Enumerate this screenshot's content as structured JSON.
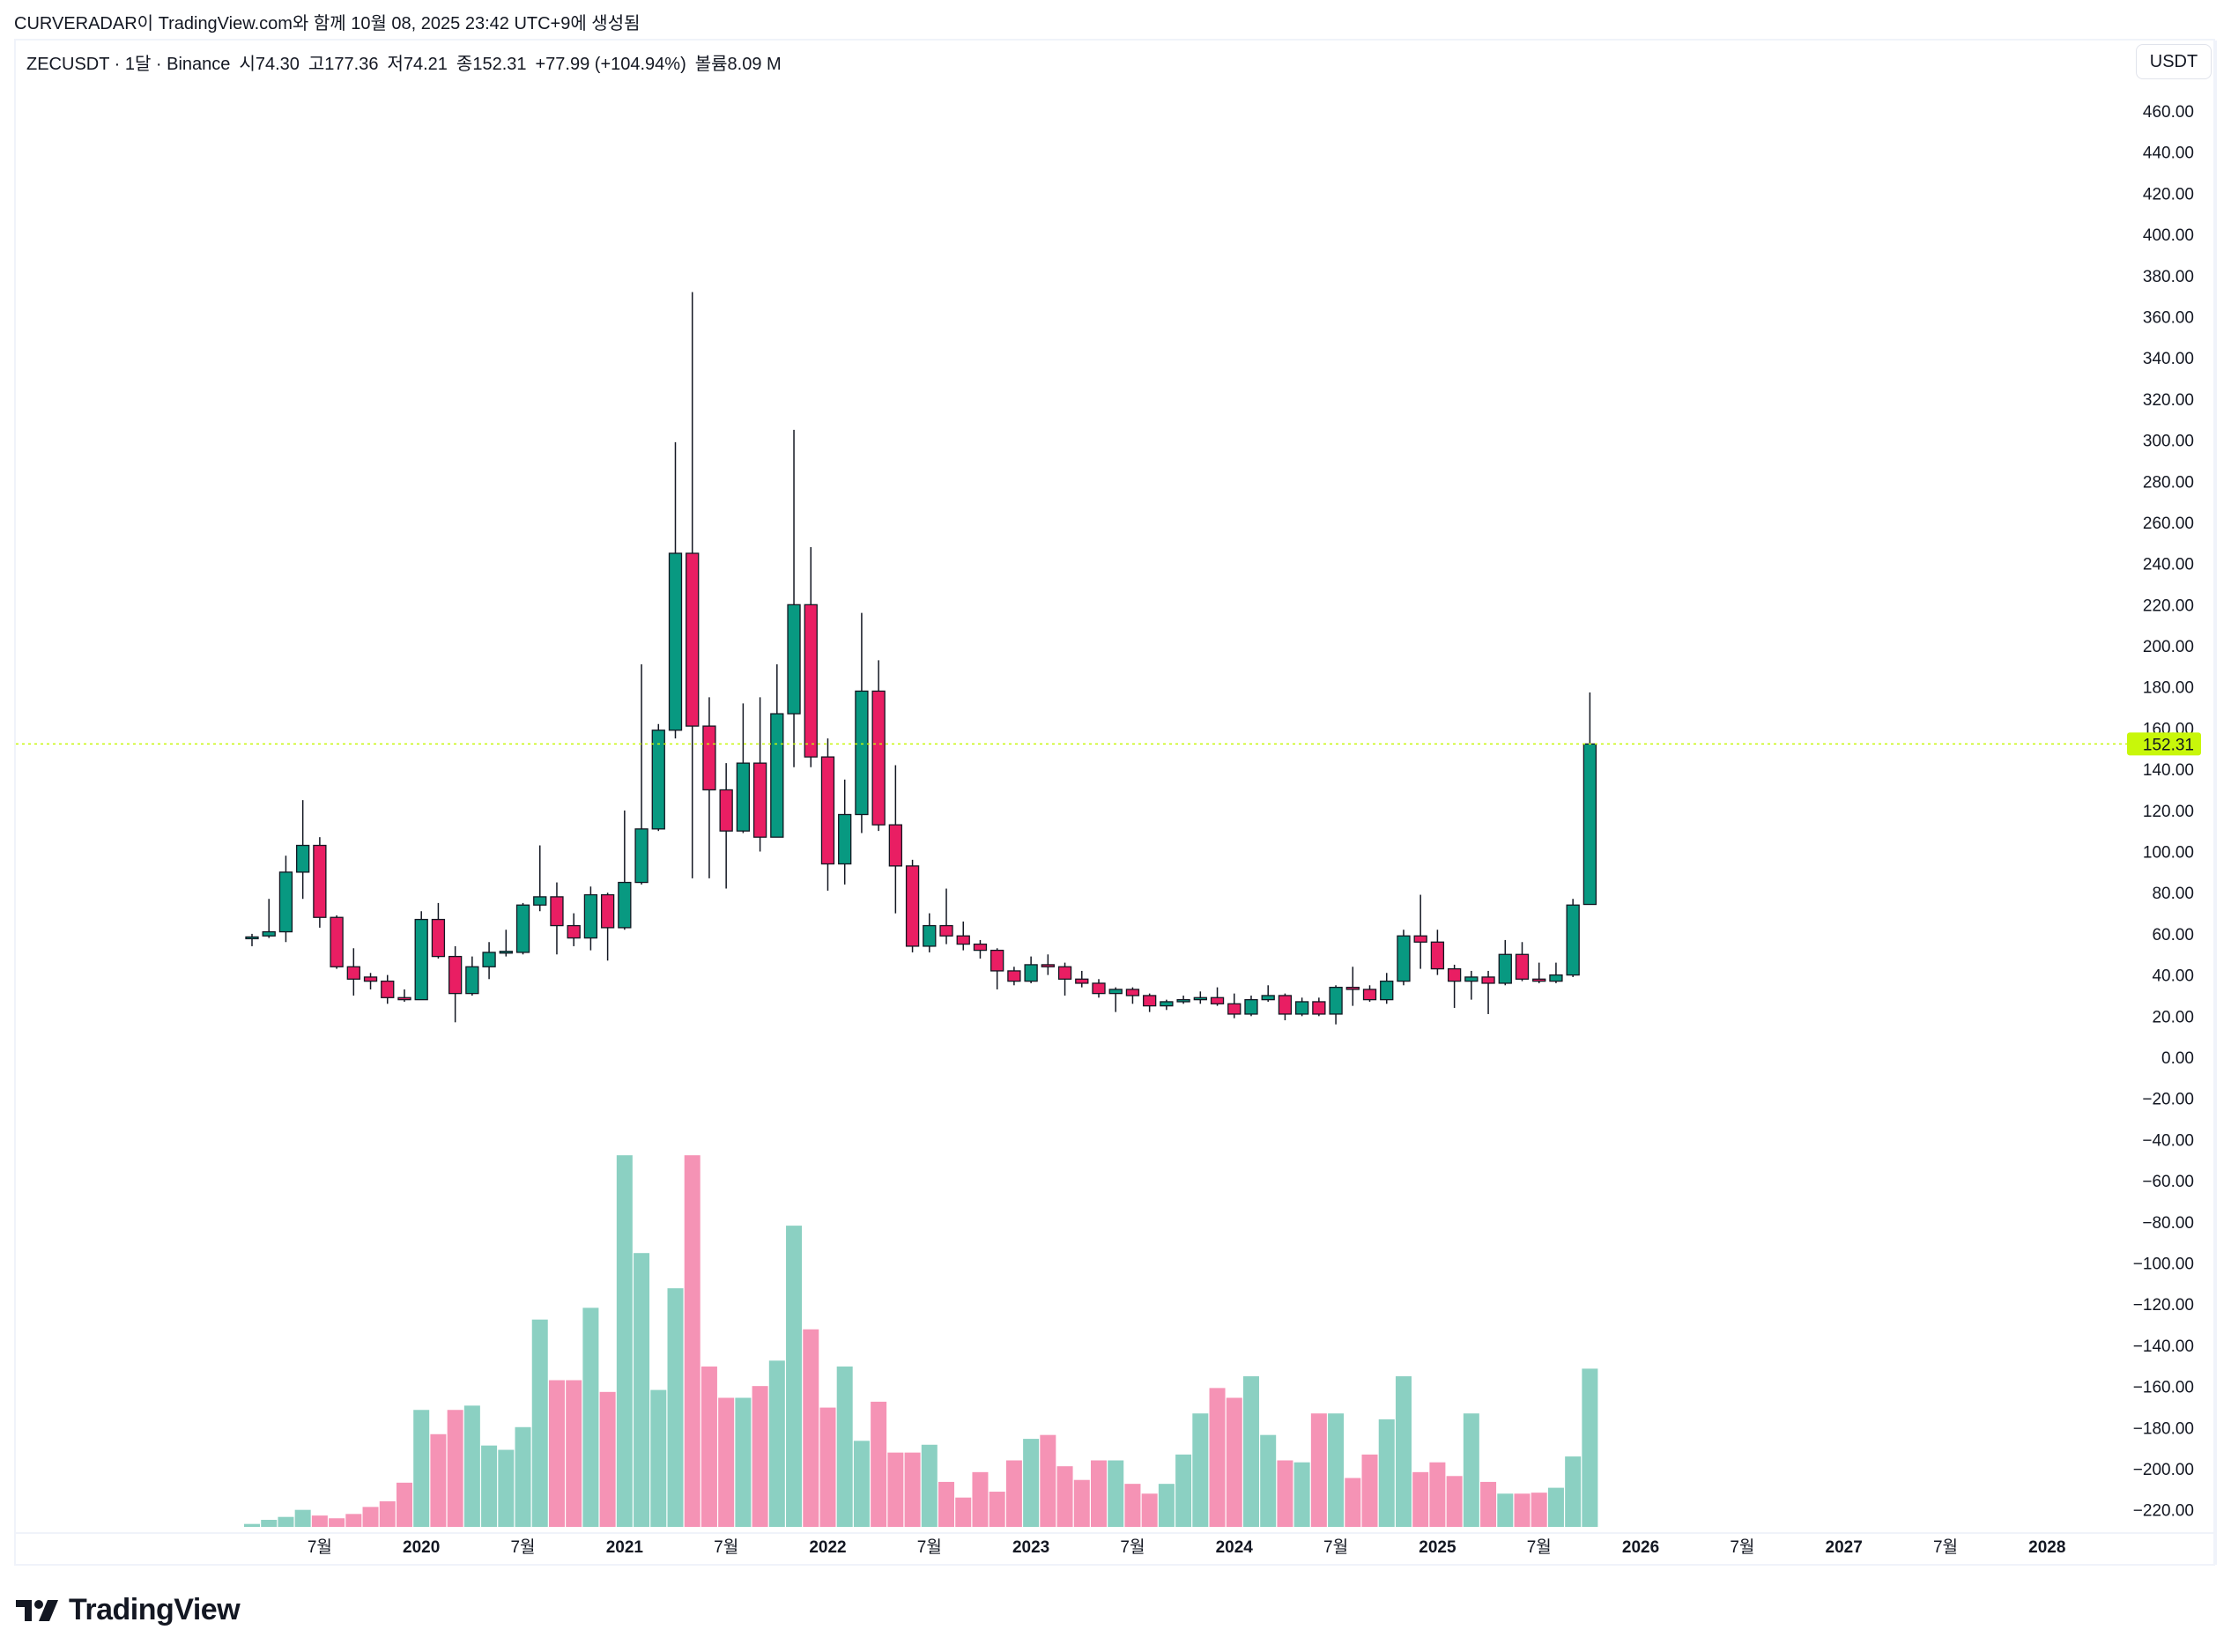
{
  "credit": "CURVERADAR이 TradingView.com와 함께 10월 08, 2025 23:42 UTC+9에 생성됨",
  "legend": {
    "symbol": "ZECUSDT · 1달 · Binance",
    "open": "시74.30",
    "high": "고177.36",
    "low": "저74.21",
    "close": "종152.31",
    "change": "+77.99 (+104.94%)",
    "volume": "볼륨8.09 M"
  },
  "currency_button": "USDT",
  "last_price_label": "152.31",
  "logo_text": "TradingView",
  "colors": {
    "up": "#089981",
    "down": "#e91e63",
    "vol_up": "#8bd0c2",
    "vol_down": "#f593b5",
    "price_tag": "#c8f70a"
  },
  "chart_data": {
    "type": "candlestick",
    "title": "ZECUSDT · 1달 · Binance",
    "x_start": "2019-03",
    "y_axis": {
      "min": -220,
      "max": 460,
      "step": 20,
      "labels": [
        "460.00",
        "440.00",
        "420.00",
        "400.00",
        "380.00",
        "360.00",
        "340.00",
        "320.00",
        "300.00",
        "280.00",
        "260.00",
        "240.00",
        "220.00",
        "200.00",
        "180.00",
        "160.00",
        "140.00",
        "120.00",
        "100.00",
        "80.00",
        "60.00",
        "40.00",
        "20.00",
        "0.00",
        "−20.00",
        "−40.00",
        "−60.00",
        "−80.00",
        "−100.00",
        "−120.00",
        "−140.00",
        "−160.00",
        "−180.00",
        "−200.00",
        "−220.00"
      ]
    },
    "x_ticks": [
      {
        "label": "7월",
        "month_index": 4
      },
      {
        "label": "2020",
        "month_index": 10
      },
      {
        "label": "7월",
        "month_index": 16
      },
      {
        "label": "2021",
        "month_index": 22
      },
      {
        "label": "7월",
        "month_index": 28
      },
      {
        "label": "2022",
        "month_index": 34
      },
      {
        "label": "7월",
        "month_index": 40
      },
      {
        "label": "2023",
        "month_index": 46
      },
      {
        "label": "7월",
        "month_index": 52
      },
      {
        "label": "2024",
        "month_index": 58
      },
      {
        "label": "7월",
        "month_index": 64
      },
      {
        "label": "2025",
        "month_index": 70
      },
      {
        "label": "7월",
        "month_index": 76
      },
      {
        "label": "2026",
        "month_index": 82
      },
      {
        "label": "7월",
        "month_index": 88
      },
      {
        "label": "2027",
        "month_index": 94
      },
      {
        "label": "7월",
        "month_index": 100
      },
      {
        "label": "2028",
        "month_index": 106
      }
    ],
    "last_price": 152.31,
    "ohlc": [
      [
        58,
        60,
        54,
        58.5
      ],
      [
        59,
        77,
        58,
        61
      ],
      [
        61,
        98,
        56,
        90
      ],
      [
        90,
        125,
        77,
        103
      ],
      [
        103,
        107,
        63,
        68
      ],
      [
        68,
        69,
        43,
        44
      ],
      [
        44,
        53,
        30,
        38
      ],
      [
        39,
        41,
        33,
        37
      ],
      [
        37,
        40,
        26,
        29
      ],
      [
        29,
        33,
        27,
        28
      ],
      [
        28,
        71,
        28,
        67
      ],
      [
        67,
        75,
        48,
        49
      ],
      [
        49,
        54,
        17,
        31
      ],
      [
        31,
        49,
        30,
        44
      ],
      [
        44,
        56,
        38,
        51
      ],
      [
        51,
        62,
        49,
        51.5
      ],
      [
        51,
        75,
        50,
        74
      ],
      [
        74,
        103,
        71,
        78
      ],
      [
        78,
        85,
        50,
        64
      ],
      [
        64,
        70,
        54,
        58
      ],
      [
        58,
        83,
        52,
        79
      ],
      [
        79,
        80,
        47,
        63
      ],
      [
        63,
        120,
        62,
        85
      ],
      [
        85,
        191,
        84,
        111
      ],
      [
        111,
        162,
        110,
        159
      ],
      [
        159,
        299,
        155,
        245
      ],
      [
        245,
        372,
        87,
        161
      ],
      [
        161,
        175,
        87,
        130
      ],
      [
        130,
        143,
        82,
        110
      ],
      [
        110,
        172,
        109,
        143
      ],
      [
        143,
        175,
        100,
        107
      ],
      [
        107,
        191,
        107,
        167
      ],
      [
        167,
        305,
        141,
        220
      ],
      [
        220,
        248,
        141,
        146
      ],
      [
        146,
        155,
        81,
        94
      ],
      [
        94,
        135,
        84,
        118
      ],
      [
        118,
        216,
        109,
        178
      ],
      [
        178,
        193,
        110,
        113
      ],
      [
        113,
        142,
        70,
        93
      ],
      [
        93,
        96,
        51,
        54
      ],
      [
        54,
        70,
        51,
        64
      ],
      [
        64,
        82,
        55,
        59
      ],
      [
        59,
        66,
        52,
        55
      ],
      [
        55,
        57,
        48,
        52
      ],
      [
        52,
        53,
        33,
        42
      ],
      [
        42,
        44,
        35,
        37
      ],
      [
        37,
        49,
        36,
        45
      ],
      [
        45,
        50,
        40,
        44
      ],
      [
        44,
        46,
        30,
        38
      ],
      [
        38,
        42,
        34,
        36
      ],
      [
        36,
        38,
        29,
        31
      ],
      [
        31,
        34,
        22,
        33
      ],
      [
        33,
        34,
        26,
        30
      ],
      [
        30,
        31,
        22,
        25
      ],
      [
        25,
        28,
        23,
        27
      ],
      [
        27,
        30,
        26,
        28
      ],
      [
        28,
        32,
        26,
        29
      ],
      [
        29,
        34,
        25,
        26
      ],
      [
        26,
        31,
        19,
        21
      ],
      [
        21,
        30,
        20,
        28
      ],
      [
        28,
        35,
        27,
        30
      ],
      [
        30,
        31,
        18,
        21
      ],
      [
        21,
        29,
        20,
        27
      ],
      [
        27,
        29,
        20,
        21
      ],
      [
        21,
        35,
        16,
        34
      ],
      [
        34,
        44,
        25,
        33
      ],
      [
        33,
        35,
        27,
        28
      ],
      [
        28,
        41,
        26,
        37
      ],
      [
        37,
        62,
        35,
        59
      ],
      [
        59,
        79,
        43,
        56
      ],
      [
        56,
        62,
        40,
        43
      ],
      [
        43,
        45,
        24,
        37
      ],
      [
        37,
        42,
        28,
        39
      ],
      [
        39,
        42,
        21,
        36
      ],
      [
        36,
        57,
        35,
        50
      ],
      [
        50,
        56,
        37,
        38
      ],
      [
        38,
        46,
        36,
        37
      ],
      [
        37,
        46,
        36,
        40
      ],
      [
        40,
        77,
        39,
        74
      ],
      [
        74.3,
        177.36,
        74.21,
        152.31
      ]
    ],
    "volume_millions": [
      0.15,
      0.36,
      0.51,
      0.87,
      0.58,
      0.44,
      0.66,
      1.02,
      1.31,
      2.26,
      5.98,
      4.74,
      5.98,
      6.2,
      4.16,
      3.94,
      5.1,
      10.6,
      7.5,
      7.5,
      11.2,
      6.9,
      19.0,
      14.0,
      7.0,
      12.2,
      19.0,
      8.2,
      6.6,
      6.6,
      7.2,
      8.5,
      15.4,
      10.1,
      6.1,
      8.2,
      4.4,
      6.4,
      3.8,
      3.8,
      4.2,
      2.3,
      1.5,
      2.8,
      1.8,
      3.4,
      4.5,
      4.7,
      3.1,
      2.4,
      3.4,
      3.4,
      2.2,
      1.7,
      2.2,
      3.7,
      5.8,
      7.1,
      6.6,
      7.7,
      4.7,
      3.4,
      3.3,
      5.8,
      5.8,
      2.5,
      3.7,
      5.5,
      7.7,
      2.8,
      3.3,
      2.6,
      5.8,
      2.3,
      1.7,
      1.7,
      1.75,
      2.0,
      3.6,
      8.09
    ]
  }
}
